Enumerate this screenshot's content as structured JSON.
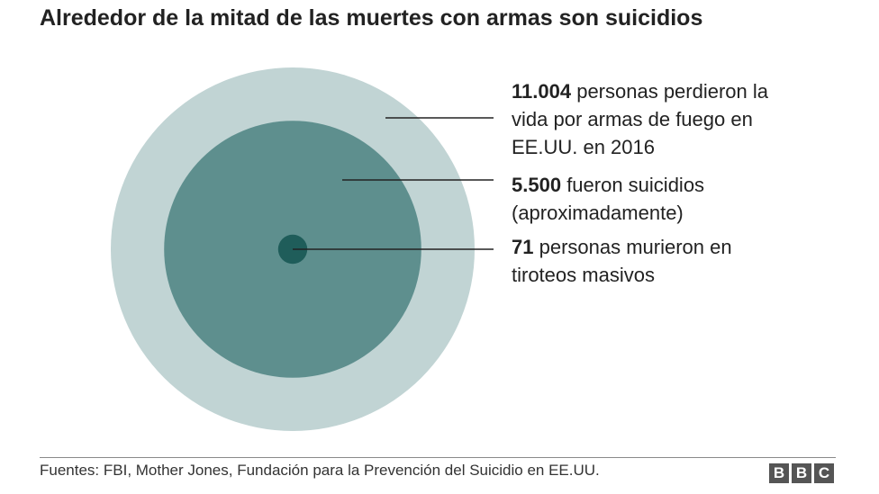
{
  "title": "Alrededor de la mitad de las muertes con armas son suicidios",
  "chart_data": {
    "type": "bubble",
    "circles": [
      {
        "value": 11004,
        "color": "#c1d4d4",
        "label_bold": "11.004",
        "label_lines": [
          "personas perdieron la",
          "vida por armas de fuego en",
          "EE.UU. en 2016"
        ]
      },
      {
        "value": 5500,
        "color": "#5e8f8e",
        "label_bold": "5.500",
        "label_lines": [
          "fueron suicidios",
          "(aproximadamente)"
        ]
      },
      {
        "value": 71,
        "color": "#1f5d5a",
        "label_bold": "71",
        "label_lines": [
          "personas murieron en",
          "tiroteos masivos"
        ]
      }
    ]
  },
  "source": "Fuentes: FBI, Mother Jones, Fundación para la Prevención del Suicidio en EE.UU.",
  "logo": {
    "letters": [
      "B",
      "B",
      "C"
    ]
  }
}
